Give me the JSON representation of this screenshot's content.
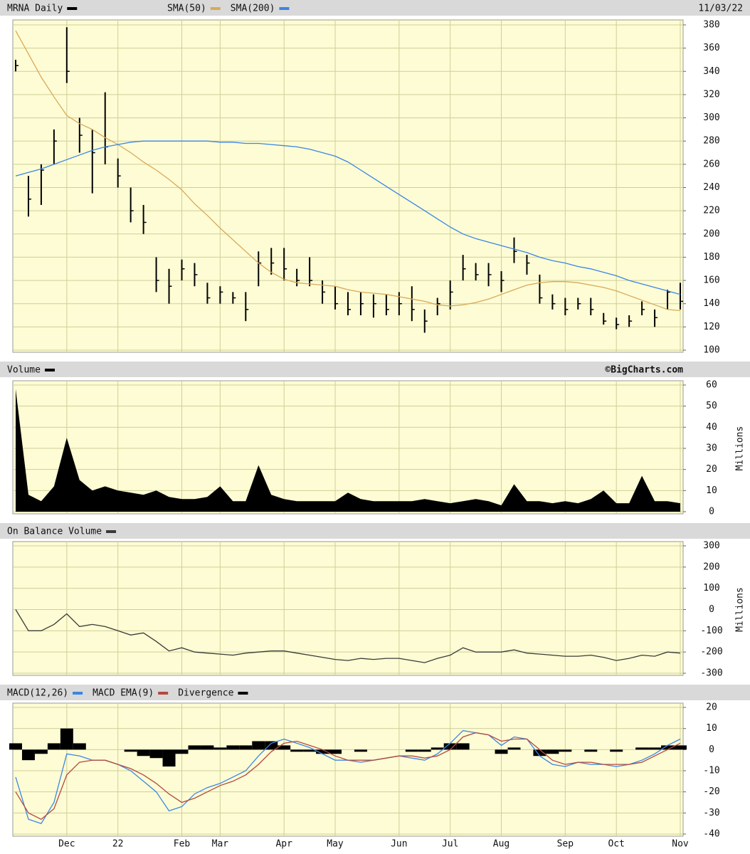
{
  "chart_data": [
    {
      "type": "ohlc",
      "date": "11/03/22",
      "ylim": [
        100,
        380
      ],
      "yticks": [
        100,
        120,
        140,
        160,
        180,
        200,
        220,
        240,
        260,
        280,
        300,
        320,
        340,
        360,
        380
      ],
      "series": [
        {
          "name": "MRNA Daily",
          "color": "#000000",
          "high": [
            350,
            250,
            260,
            290,
            378,
            300,
            290,
            322,
            265,
            240,
            225,
            180,
            170,
            178,
            175,
            158,
            155,
            150,
            150,
            185,
            188,
            188,
            170,
            180,
            160,
            155,
            150,
            150,
            148,
            148,
            150,
            155,
            135,
            145,
            160,
            182,
            175,
            175,
            168,
            197,
            182,
            165,
            148,
            145,
            145,
            145,
            132,
            128,
            130,
            142,
            135,
            152,
            158
          ],
          "low": [
            340,
            215,
            225,
            260,
            330,
            270,
            235,
            260,
            240,
            210,
            200,
            150,
            140,
            160,
            155,
            140,
            140,
            140,
            125,
            155,
            165,
            160,
            155,
            155,
            140,
            135,
            130,
            130,
            128,
            130,
            130,
            125,
            115,
            130,
            135,
            160,
            160,
            155,
            150,
            175,
            165,
            140,
            135,
            130,
            135,
            130,
            122,
            118,
            120,
            130,
            120,
            135,
            135
          ],
          "close": [
            345,
            230,
            255,
            280,
            340,
            285,
            270,
            275,
            250,
            220,
            210,
            160,
            155,
            170,
            165,
            145,
            150,
            145,
            135,
            175,
            175,
            170,
            160,
            160,
            150,
            140,
            135,
            140,
            140,
            135,
            140,
            135,
            125,
            140,
            150,
            170,
            165,
            165,
            160,
            185,
            175,
            145,
            140,
            135,
            140,
            135,
            125,
            122,
            125,
            135,
            128,
            150,
            142
          ]
        },
        {
          "name": "SMA(50)",
          "color": "#d9a95a",
          "values": [
            375,
            355,
            335,
            318,
            302,
            295,
            290,
            283,
            277,
            270,
            262,
            255,
            247,
            238,
            226,
            216,
            205,
            195,
            185,
            175,
            167,
            161,
            158,
            157,
            156,
            155,
            152,
            150,
            149,
            148,
            146,
            144,
            142,
            139,
            138,
            139,
            141,
            144,
            148,
            152,
            156,
            158,
            159,
            159,
            158,
            156,
            154,
            151,
            147,
            143,
            139,
            135,
            134
          ]
        },
        {
          "name": "SMA(200)",
          "color": "#3a86e6",
          "values": [
            250,
            253,
            256,
            260,
            264,
            268,
            272,
            275,
            277,
            279,
            280,
            280,
            280,
            280,
            280,
            280,
            279,
            279,
            278,
            278,
            277,
            276,
            275,
            273,
            270,
            267,
            262,
            255,
            248,
            241,
            234,
            227,
            220,
            213,
            206,
            200,
            196,
            193,
            190,
            187,
            184,
            180,
            177,
            175,
            172,
            170,
            167,
            164,
            160,
            157,
            154,
            151,
            148
          ]
        }
      ]
    },
    {
      "type": "area",
      "credit": "©BigCharts.com",
      "y_label": "Millions",
      "ylim": [
        0,
        60
      ],
      "yticks": [
        0,
        10,
        20,
        30,
        40,
        50,
        60
      ],
      "series": [
        {
          "name": "Volume",
          "color": "#000000",
          "values": [
            58,
            8,
            5,
            12,
            35,
            15,
            10,
            12,
            10,
            9,
            8,
            10,
            7,
            6,
            6,
            7,
            12,
            5,
            5,
            22,
            8,
            6,
            5,
            5,
            5,
            5,
            9,
            6,
            5,
            5,
            5,
            5,
            6,
            5,
            4,
            5,
            6,
            5,
            3,
            13,
            5,
            5,
            4,
            5,
            4,
            6,
            10,
            4,
            4,
            17,
            5,
            5,
            4
          ]
        }
      ]
    },
    {
      "type": "line",
      "y_label": "Millions",
      "ylim": [
        -300,
        300
      ],
      "yticks": [
        -300,
        -200,
        -100,
        0,
        100,
        200,
        300
      ],
      "series": [
        {
          "name": "On Balance Volume",
          "color": "#3a3a3a",
          "values": [
            0,
            -100,
            -100,
            -70,
            -20,
            -80,
            -70,
            -80,
            -100,
            -120,
            -110,
            -150,
            -195,
            -180,
            -200,
            -205,
            -210,
            -215,
            -205,
            -200,
            -195,
            -195,
            -205,
            -215,
            -225,
            -235,
            -240,
            -230,
            -235,
            -230,
            -230,
            -240,
            -250,
            -230,
            -215,
            -180,
            -200,
            -200,
            -200,
            -190,
            -205,
            -210,
            -215,
            -220,
            -220,
            -215,
            -225,
            -240,
            -230,
            -215,
            -220,
            -200,
            -205
          ]
        }
      ]
    },
    {
      "type": "macd",
      "ylim": [
        -40,
        20
      ],
      "yticks": [
        -40,
        -30,
        -20,
        -10,
        0,
        10,
        20
      ],
      "categories": [
        null,
        null,
        null,
        null,
        "Dec",
        null,
        null,
        null,
        "22",
        null,
        null,
        null,
        null,
        "Feb",
        null,
        null,
        "Mar",
        null,
        null,
        null,
        null,
        "Apr",
        null,
        null,
        null,
        "May",
        null,
        null,
        null,
        null,
        "Jun",
        null,
        null,
        null,
        "Jul",
        null,
        null,
        null,
        "Aug",
        null,
        null,
        null,
        null,
        "Sep",
        null,
        null,
        null,
        "Oct",
        null,
        null,
        null,
        null,
        "Nov"
      ],
      "series": [
        {
          "name": "MACD(12,26)",
          "color": "#3a86e6",
          "values": [
            -13,
            -33,
            -35,
            -25,
            -2,
            -3,
            -5,
            -5,
            -7,
            -10,
            -15,
            -20,
            -29,
            -27,
            -21,
            -18,
            -16,
            -13,
            -10,
            -3,
            3,
            5,
            3,
            1,
            -2,
            -5,
            -5,
            -6,
            -5,
            -4,
            -3,
            -4,
            -5,
            -2,
            3,
            9,
            8,
            7,
            2,
            6,
            5,
            -3,
            -7,
            -8,
            -6,
            -7,
            -7,
            -8,
            -7,
            -5,
            -2,
            2,
            5
          ]
        },
        {
          "name": "MACD EMA(9)",
          "color": "#b5483f",
          "values": [
            -20,
            -30,
            -33,
            -28,
            -12,
            -6,
            -5,
            -5,
            -7,
            -9,
            -12,
            -16,
            -21,
            -25,
            -23,
            -20,
            -17,
            -15,
            -12,
            -7,
            -1,
            3,
            4,
            2,
            0,
            -3,
            -5,
            -5,
            -5,
            -4,
            -3,
            -3,
            -4,
            -3,
            0,
            6,
            8,
            7,
            4,
            5,
            5,
            0,
            -5,
            -7,
            -6,
            -6,
            -7,
            -7,
            -7,
            -6,
            -3,
            0,
            3
          ]
        },
        {
          "name": "Divergence",
          "color": "#000000",
          "values": [
            3,
            -5,
            -2,
            3,
            10,
            3,
            0,
            0,
            0,
            -1,
            -3,
            -4,
            -8,
            -2,
            2,
            2,
            1,
            2,
            2,
            4,
            4,
            2,
            -1,
            -1,
            -2,
            -2,
            0,
            -1,
            0,
            0,
            0,
            -1,
            -1,
            1,
            3,
            3,
            0,
            0,
            -2,
            1,
            0,
            -3,
            -2,
            -1,
            0,
            -1,
            0,
            -1,
            0,
            1,
            1,
            2,
            2
          ]
        }
      ]
    }
  ]
}
